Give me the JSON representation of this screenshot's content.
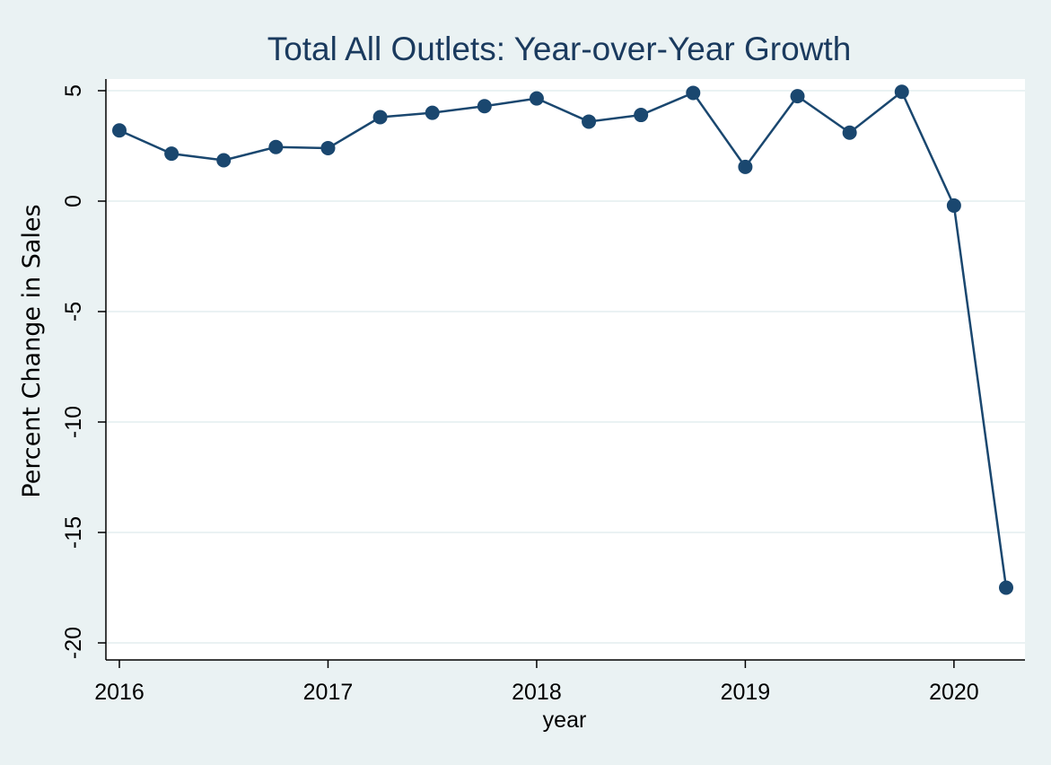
{
  "chart_data": {
    "type": "line",
    "title": "Total All Outlets: Year-over-Year Growth",
    "xlabel": "year",
    "ylabel": "Percent Change in Sales",
    "xlim": [
      2016,
      2020.25
    ],
    "ylim": [
      -20,
      5
    ],
    "x_ticks": [
      2016,
      2017,
      2018,
      2019,
      2020
    ],
    "y_ticks": [
      5,
      0,
      -5,
      -10,
      -15,
      -20
    ],
    "grid": true,
    "background_color": "#eaf2f3",
    "plot_background": "#ffffff",
    "series_color": "#1a476f",
    "series": [
      {
        "x": [
          2016.0,
          2016.25,
          2016.5,
          2016.75,
          2017.0,
          2017.25,
          2017.5,
          2017.75,
          2018.0,
          2018.25,
          2018.5,
          2018.75,
          2019.0,
          2019.25,
          2019.5,
          2019.75,
          2020.0,
          2020.25
        ],
        "values": [
          3.2,
          2.15,
          1.85,
          2.45,
          2.4,
          3.8,
          4.0,
          4.3,
          4.65,
          3.6,
          3.9,
          4.9,
          1.55,
          4.75,
          3.1,
          4.95,
          -0.2,
          -17.5
        ]
      }
    ]
  }
}
